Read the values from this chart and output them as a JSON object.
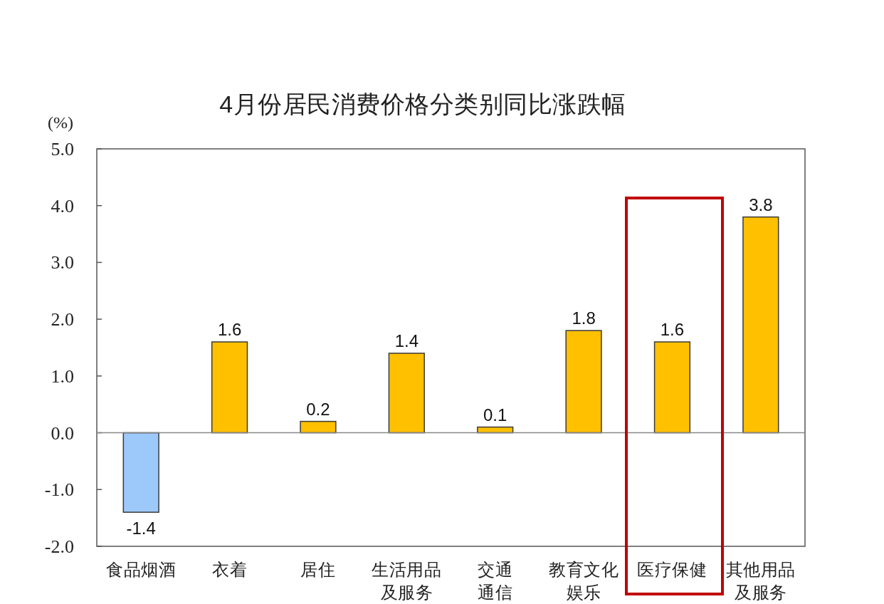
{
  "chart_data": {
    "type": "bar",
    "title": "4月份居民消费价格分类别同比涨跌幅",
    "ylabel": "(%)",
    "categories": [
      "食品烟酒",
      "衣着",
      "居住",
      "生活用品及服务",
      "交通通信",
      "教育文化娱乐",
      "医疗保健",
      "其他用品及服务"
    ],
    "values": [
      -1.4,
      1.6,
      0.2,
      1.4,
      0.1,
      1.8,
      1.6,
      3.8
    ],
    "colors": [
      "#9dc8fa",
      "#ffc000",
      "#ffc000",
      "#ffc000",
      "#ffc000",
      "#ffc000",
      "#ffc000",
      "#ffc000"
    ],
    "ylim": [
      -2,
      5
    ],
    "yticks": [
      {
        "value": -2,
        "label": "-2.0"
      },
      {
        "value": -1,
        "label": "-1.0"
      },
      {
        "value": 0,
        "label": "0.0"
      },
      {
        "value": 1,
        "label": "1.0"
      },
      {
        "value": 2,
        "label": "2.0"
      },
      {
        "value": 3,
        "label": "3.0"
      },
      {
        "value": 4,
        "label": "4.0"
      },
      {
        "value": 5,
        "label": "5.0"
      }
    ],
    "data_labels": true
  }
}
